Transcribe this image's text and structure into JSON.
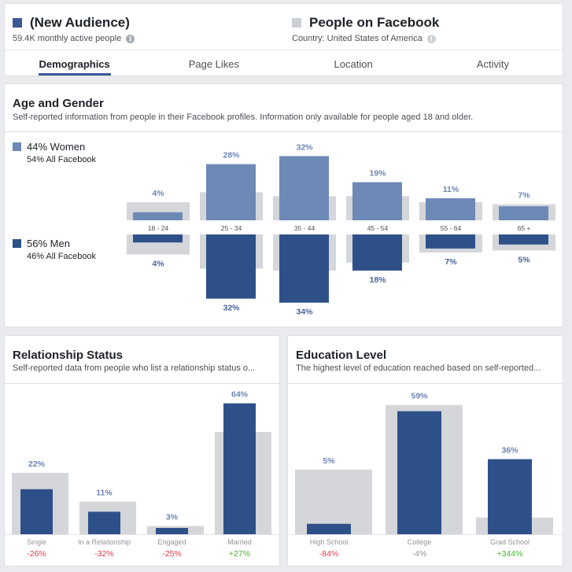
{
  "header": {
    "audience": {
      "title": "(New Audience)",
      "subtitle": "59.4K monthly active people",
      "color": "#3b5998"
    },
    "baseline": {
      "title": "People on Facebook",
      "subtitle": "Country: United States of America",
      "color": "#ccd0d5"
    },
    "tabs": [
      "Demographics",
      "Page Likes",
      "Location",
      "Activity"
    ],
    "active_tab": "Demographics"
  },
  "colors": {
    "women": "#6d89b6",
    "men": "#2e5089",
    "baseline": "#d4d6da",
    "label_women": "#6d84b4",
    "label_men": "#4b6499",
    "positive": "#42b72a",
    "negative": "#e03c4a",
    "neutral": "#90949c"
  },
  "age_gender": {
    "title": "Age and Gender",
    "subtitle": "Self-reported information from people in their Facebook profiles. Information only available for people aged 18 and older.",
    "women_label": "44% Women",
    "women_all": "54% All Facebook",
    "men_label": "56% Men",
    "men_all": "46% All Facebook"
  },
  "relationship": {
    "title": "Relationship Status",
    "subtitle": "Self-reported data from people who list a relationship status o..."
  },
  "education": {
    "title": "Education Level",
    "subtitle": "The highest level of education reached based on self-reported..."
  },
  "chart_data": [
    {
      "type": "bar",
      "title": "Age and Gender",
      "categories": [
        "18 - 24",
        "25 - 34",
        "35 - 44",
        "45 - 54",
        "55 - 64",
        "65 +"
      ],
      "series": [
        {
          "name": "Women",
          "values": [
            4,
            28,
            32,
            19,
            11,
            7
          ],
          "labels": [
            "4%",
            "28%",
            "32%",
            "19%",
            "11%",
            "7%"
          ],
          "baseline": [
            9,
            14,
            12,
            12,
            9,
            8
          ]
        },
        {
          "name": "Men",
          "values": [
            4,
            32,
            34,
            18,
            7,
            5
          ],
          "labels": [
            "4%",
            "32%",
            "34%",
            "18%",
            "7%",
            "5%"
          ],
          "baseline": [
            10,
            17,
            18,
            14,
            9,
            8
          ]
        }
      ]
    },
    {
      "type": "bar",
      "title": "Relationship Status",
      "categories": [
        "Single",
        "In a Relationship",
        "Engaged",
        "Married"
      ],
      "values": [
        22,
        11,
        3,
        64
      ],
      "labels": [
        "22%",
        "11%",
        "3%",
        "64%"
      ],
      "baseline": [
        30,
        16,
        4,
        50
      ],
      "changes": [
        "-26%",
        "-32%",
        "-25%",
        "+27%"
      ]
    },
    {
      "type": "bar",
      "title": "Education Level",
      "categories": [
        "High School",
        "College",
        "Grad School"
      ],
      "values": [
        5,
        59,
        36
      ],
      "labels": [
        "5%",
        "59%",
        "36%"
      ],
      "baseline": [
        31,
        62,
        8
      ],
      "changes": [
        "-84%",
        "-4%",
        "+344%"
      ]
    }
  ]
}
